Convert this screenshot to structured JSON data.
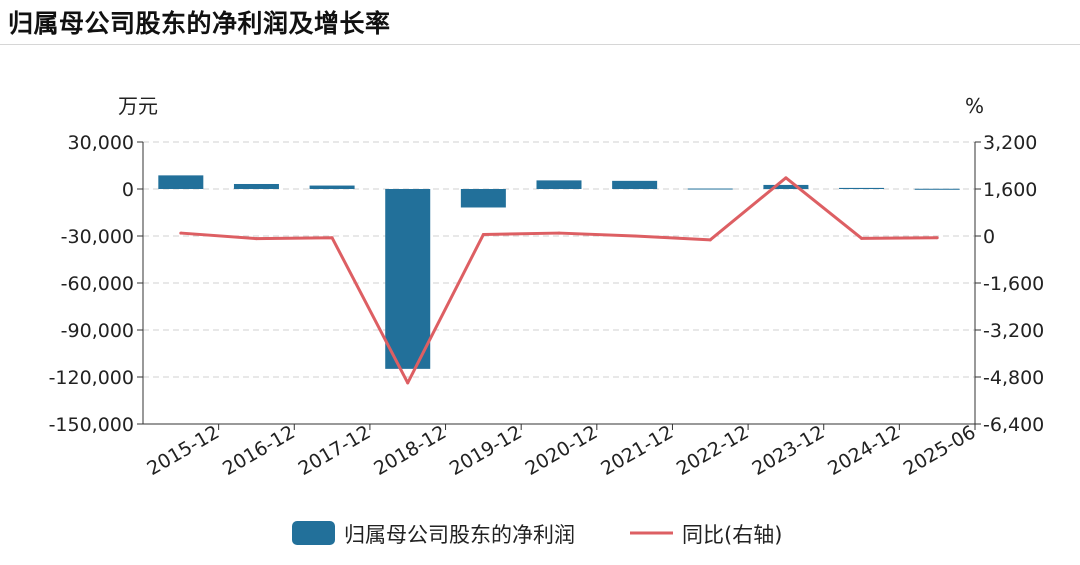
{
  "title": "归属母公司股东的净利润及增长率",
  "colors": {
    "bar": "#22709a",
    "line": "#dd5f63",
    "grid": "#d0d0d0",
    "axis": "#333333",
    "text": "#222222"
  },
  "chart_data": {
    "type": "bar",
    "categories": [
      "2015-12",
      "2016-12",
      "2017-12",
      "2018-12",
      "2019-12",
      "2020-12",
      "2021-12",
      "2022-12",
      "2023-12",
      "2024-12",
      "2025-06"
    ],
    "series": [
      {
        "name": "归属母公司股东的净利润",
        "type": "bar",
        "axis": "left",
        "values": [
          8700,
          3200,
          2200,
          -114800,
          -11800,
          5500,
          5200,
          300,
          2600,
          700,
          150
        ]
      },
      {
        "name": "同比(右轴)",
        "type": "line",
        "axis": "right",
        "values": [
          100,
          -90,
          -60,
          -5000,
          50,
          100,
          0,
          -130,
          1980,
          -80,
          -60
        ]
      }
    ],
    "y_left": {
      "unit": "万元",
      "min": -150000,
      "max": 30000,
      "ticks": [
        30000,
        0,
        -30000,
        -60000,
        -90000,
        -120000,
        -150000
      ],
      "tick_labels": [
        "30,000",
        "0",
        "-30,000",
        "-60,000",
        "-90,000",
        "-120,000",
        "-150,000"
      ]
    },
    "y_right": {
      "unit": "%",
      "min": -6400,
      "max": 3200,
      "ticks": [
        3200,
        1600,
        0,
        -1600,
        -3200,
        -4800,
        -6400
      ],
      "tick_labels": [
        "3,200",
        "1,600",
        "0",
        "-1,600",
        "-3,200",
        "-4,800",
        "-6,400"
      ]
    },
    "grid": true,
    "legend_position": "bottom"
  }
}
